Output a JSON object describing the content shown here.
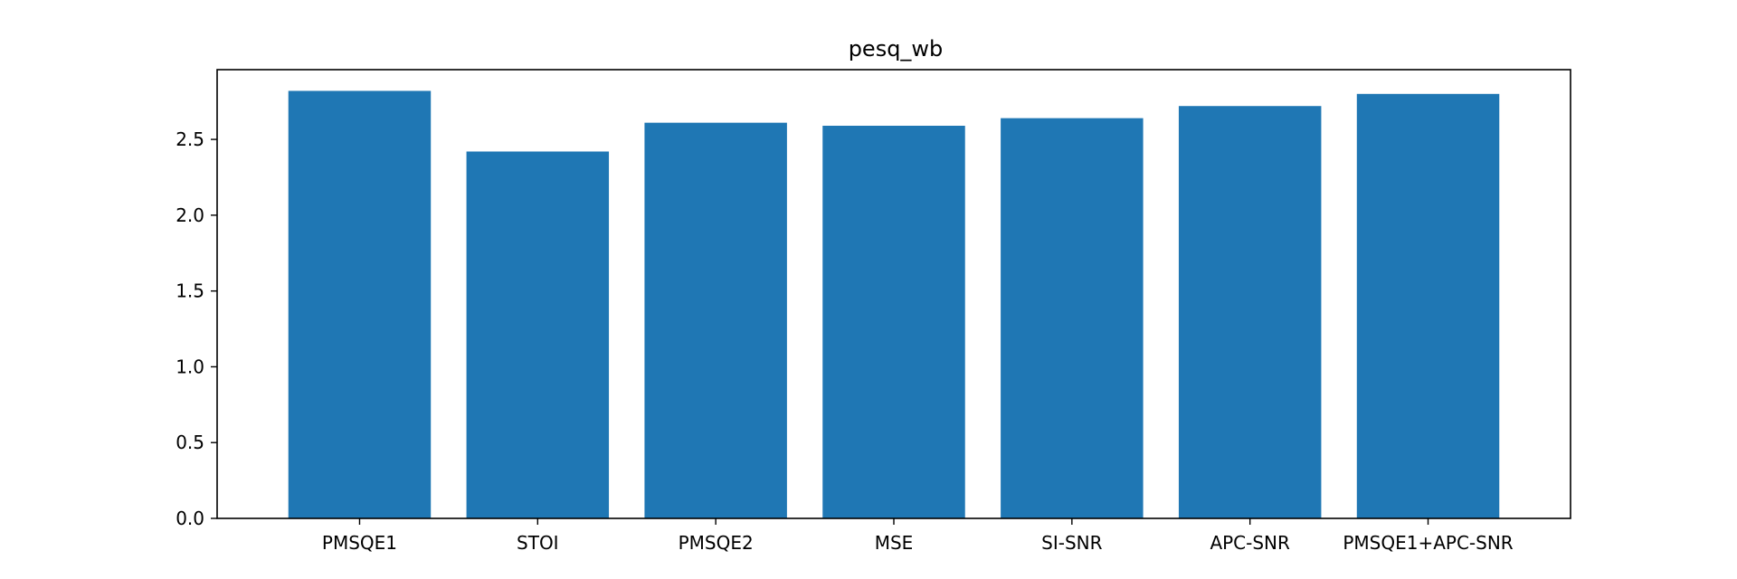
{
  "chart_data": {
    "type": "bar",
    "title": "pesq_wb",
    "xlabel": "",
    "ylabel": "",
    "categories": [
      "PMSQE1",
      "STOI",
      "PMSQE2",
      "MSE",
      "SI-SNR",
      "APC-SNR",
      "PMSQE1+APC-SNR"
    ],
    "values": [
      2.82,
      2.42,
      2.61,
      2.59,
      2.64,
      2.72,
      2.8
    ],
    "ylim": [
      0,
      2.96
    ],
    "yticks": [
      "0.0",
      "0.5",
      "1.0",
      "1.5",
      "2.0",
      "2.5"
    ],
    "ytick_values": [
      0,
      0.5,
      1.0,
      1.5,
      2.0,
      2.5
    ],
    "bar_color": "#1f77b4",
    "grid": false,
    "legend": "none"
  }
}
